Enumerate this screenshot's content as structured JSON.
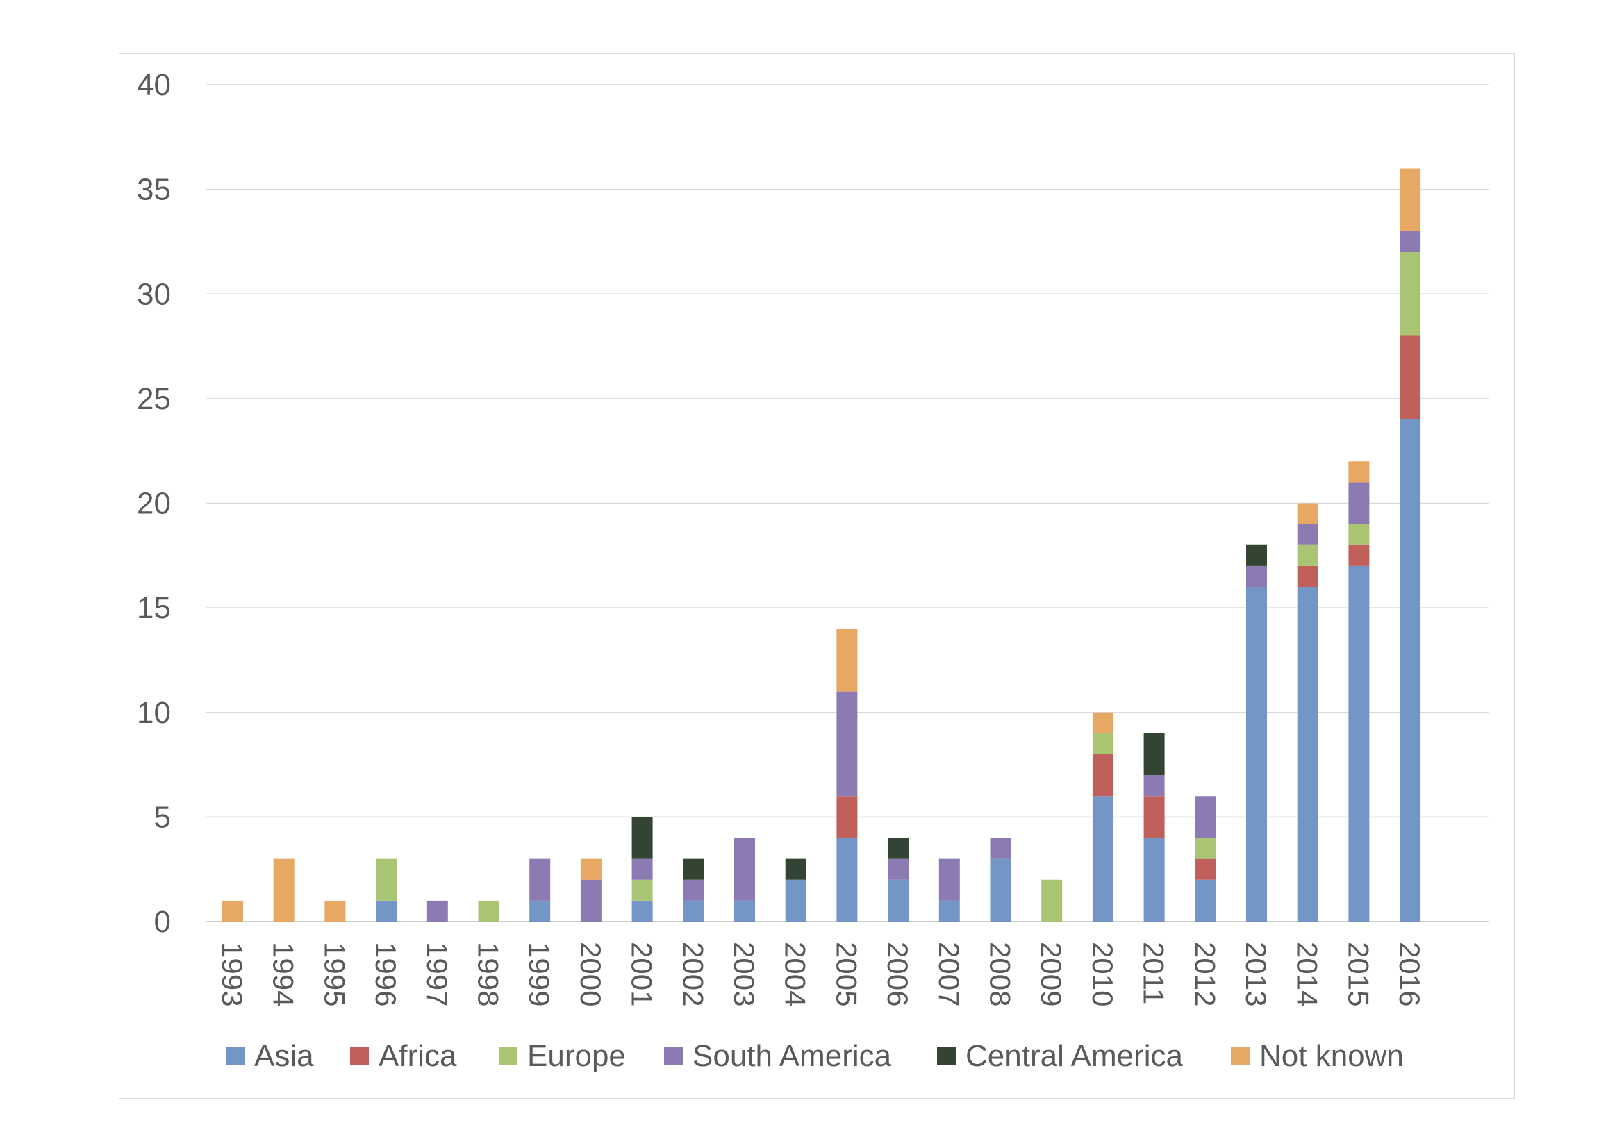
{
  "chart_data": {
    "type": "bar",
    "stacked": true,
    "title": "",
    "xlabel": "",
    "ylabel": "",
    "ylim": [
      0,
      40
    ],
    "yticks": [
      0,
      5,
      10,
      15,
      20,
      25,
      30,
      35,
      40
    ],
    "grid": true,
    "legend_position": "bottom",
    "categories": [
      "1993",
      "1994",
      "1995",
      "1996",
      "1997",
      "1998",
      "1999",
      "2000",
      "2001",
      "2002",
      "2003",
      "2004",
      "2005",
      "2006",
      "2007",
      "2008",
      "2009",
      "2010",
      "2011",
      "2012",
      "2013",
      "2014",
      "2015",
      "2016"
    ],
    "series": [
      {
        "name": "Asia",
        "color": "#7396c7",
        "values": [
          0,
          0,
          0,
          1,
          0,
          0,
          1,
          0,
          1,
          1,
          1,
          2,
          4,
          2,
          1,
          3,
          0,
          6,
          4,
          2,
          16,
          16,
          17,
          24
        ]
      },
      {
        "name": "Africa",
        "color": "#c0605a",
        "values": [
          0,
          0,
          0,
          0,
          0,
          0,
          0,
          0,
          0,
          0,
          0,
          0,
          2,
          0,
          0,
          0,
          0,
          2,
          2,
          1,
          0,
          1,
          1,
          4
        ]
      },
      {
        "name": "Europe",
        "color": "#a9c574",
        "values": [
          0,
          0,
          0,
          2,
          0,
          1,
          0,
          0,
          1,
          0,
          0,
          0,
          0,
          0,
          0,
          0,
          2,
          1,
          0,
          1,
          0,
          1,
          1,
          4
        ]
      },
      {
        "name": "South America",
        "color": "#8c7bb3",
        "values": [
          0,
          0,
          0,
          0,
          1,
          0,
          2,
          2,
          1,
          1,
          3,
          0,
          5,
          1,
          2,
          1,
          0,
          0,
          1,
          2,
          1,
          1,
          2,
          1
        ]
      },
      {
        "name": "Central America",
        "color": "#344432",
        "values": [
          0,
          0,
          0,
          0,
          0,
          0,
          0,
          0,
          2,
          1,
          0,
          1,
          0,
          1,
          0,
          0,
          0,
          0,
          2,
          0,
          1,
          0,
          0,
          0
        ]
      },
      {
        "name": "Not known",
        "color": "#e6a863",
        "values": [
          1,
          3,
          1,
          0,
          0,
          0,
          0,
          1,
          0,
          0,
          0,
          0,
          3,
          0,
          0,
          0,
          0,
          1,
          0,
          0,
          0,
          1,
          1,
          3
        ]
      }
    ]
  }
}
